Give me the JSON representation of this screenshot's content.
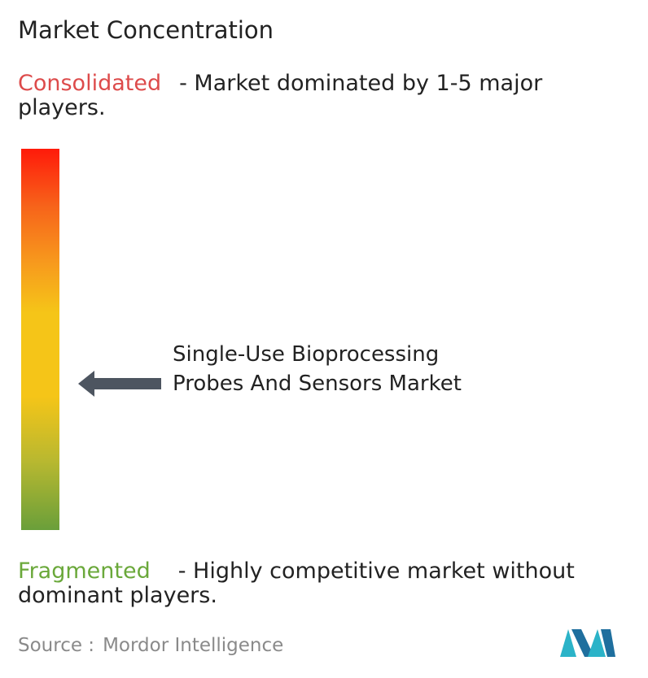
{
  "header": {
    "title": "Market Concentration"
  },
  "consolidated": {
    "label": "Consolidated",
    "description": "- Market dominated by 1-5 major players."
  },
  "marker": {
    "label": "Single-Use Bioprocessing Probes And Sensors Market"
  },
  "fragmented": {
    "label": "Fragmented",
    "description": "- Highly competitive market without dominant players."
  },
  "source": {
    "prefix": "Source :",
    "name": "Mordor Intelligence"
  }
}
